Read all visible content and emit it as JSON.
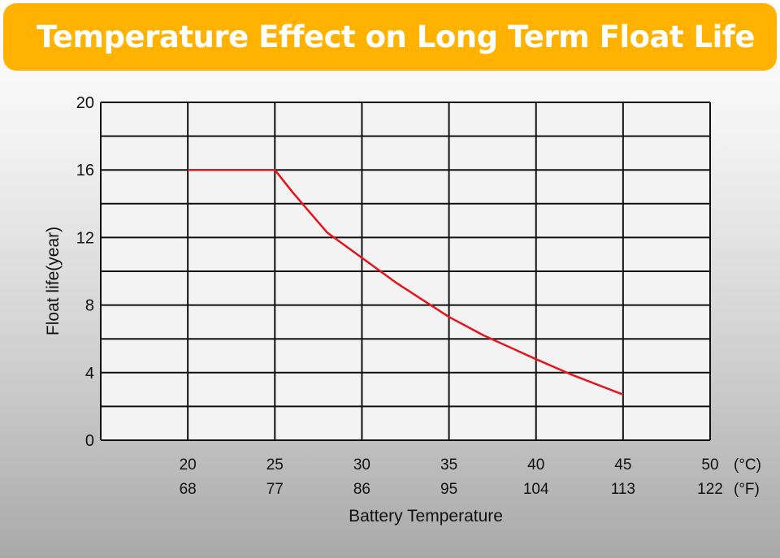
{
  "header": {
    "title": "Temperature Effect on Long Term Float Life"
  },
  "colors": {
    "banner": "#ffb300",
    "curve": "#e8141b",
    "grid": "#111111",
    "plot_bg": "#f3f3f3"
  },
  "chart_data": {
    "type": "line",
    "title": "Temperature Effect on Long Term Float Life",
    "xlabel": "Battery Temperature",
    "ylabel": "Float life(year)",
    "xlim": [
      15,
      50
    ],
    "ylim": [
      0,
      20
    ],
    "y_ticks": [
      "0",
      "4",
      "8",
      "12",
      "16",
      "20"
    ],
    "x_ticks_c": [
      "20",
      "25",
      "30",
      "35",
      "40",
      "45",
      "50"
    ],
    "x_ticks_f": [
      "68",
      "77",
      "86",
      "95",
      "104",
      "113",
      "122"
    ],
    "unit_c": "(°C)",
    "unit_f": "(°F)",
    "grid": true,
    "series": [
      {
        "x": [
          20,
          25,
          26,
          27,
          28,
          30,
          32,
          35,
          37,
          40,
          42,
          45
        ],
        "y": [
          16,
          16,
          14.7,
          13.5,
          12.3,
          10.8,
          9.3,
          7.3,
          6.2,
          4.8,
          3.9,
          2.7
        ]
      }
    ]
  }
}
